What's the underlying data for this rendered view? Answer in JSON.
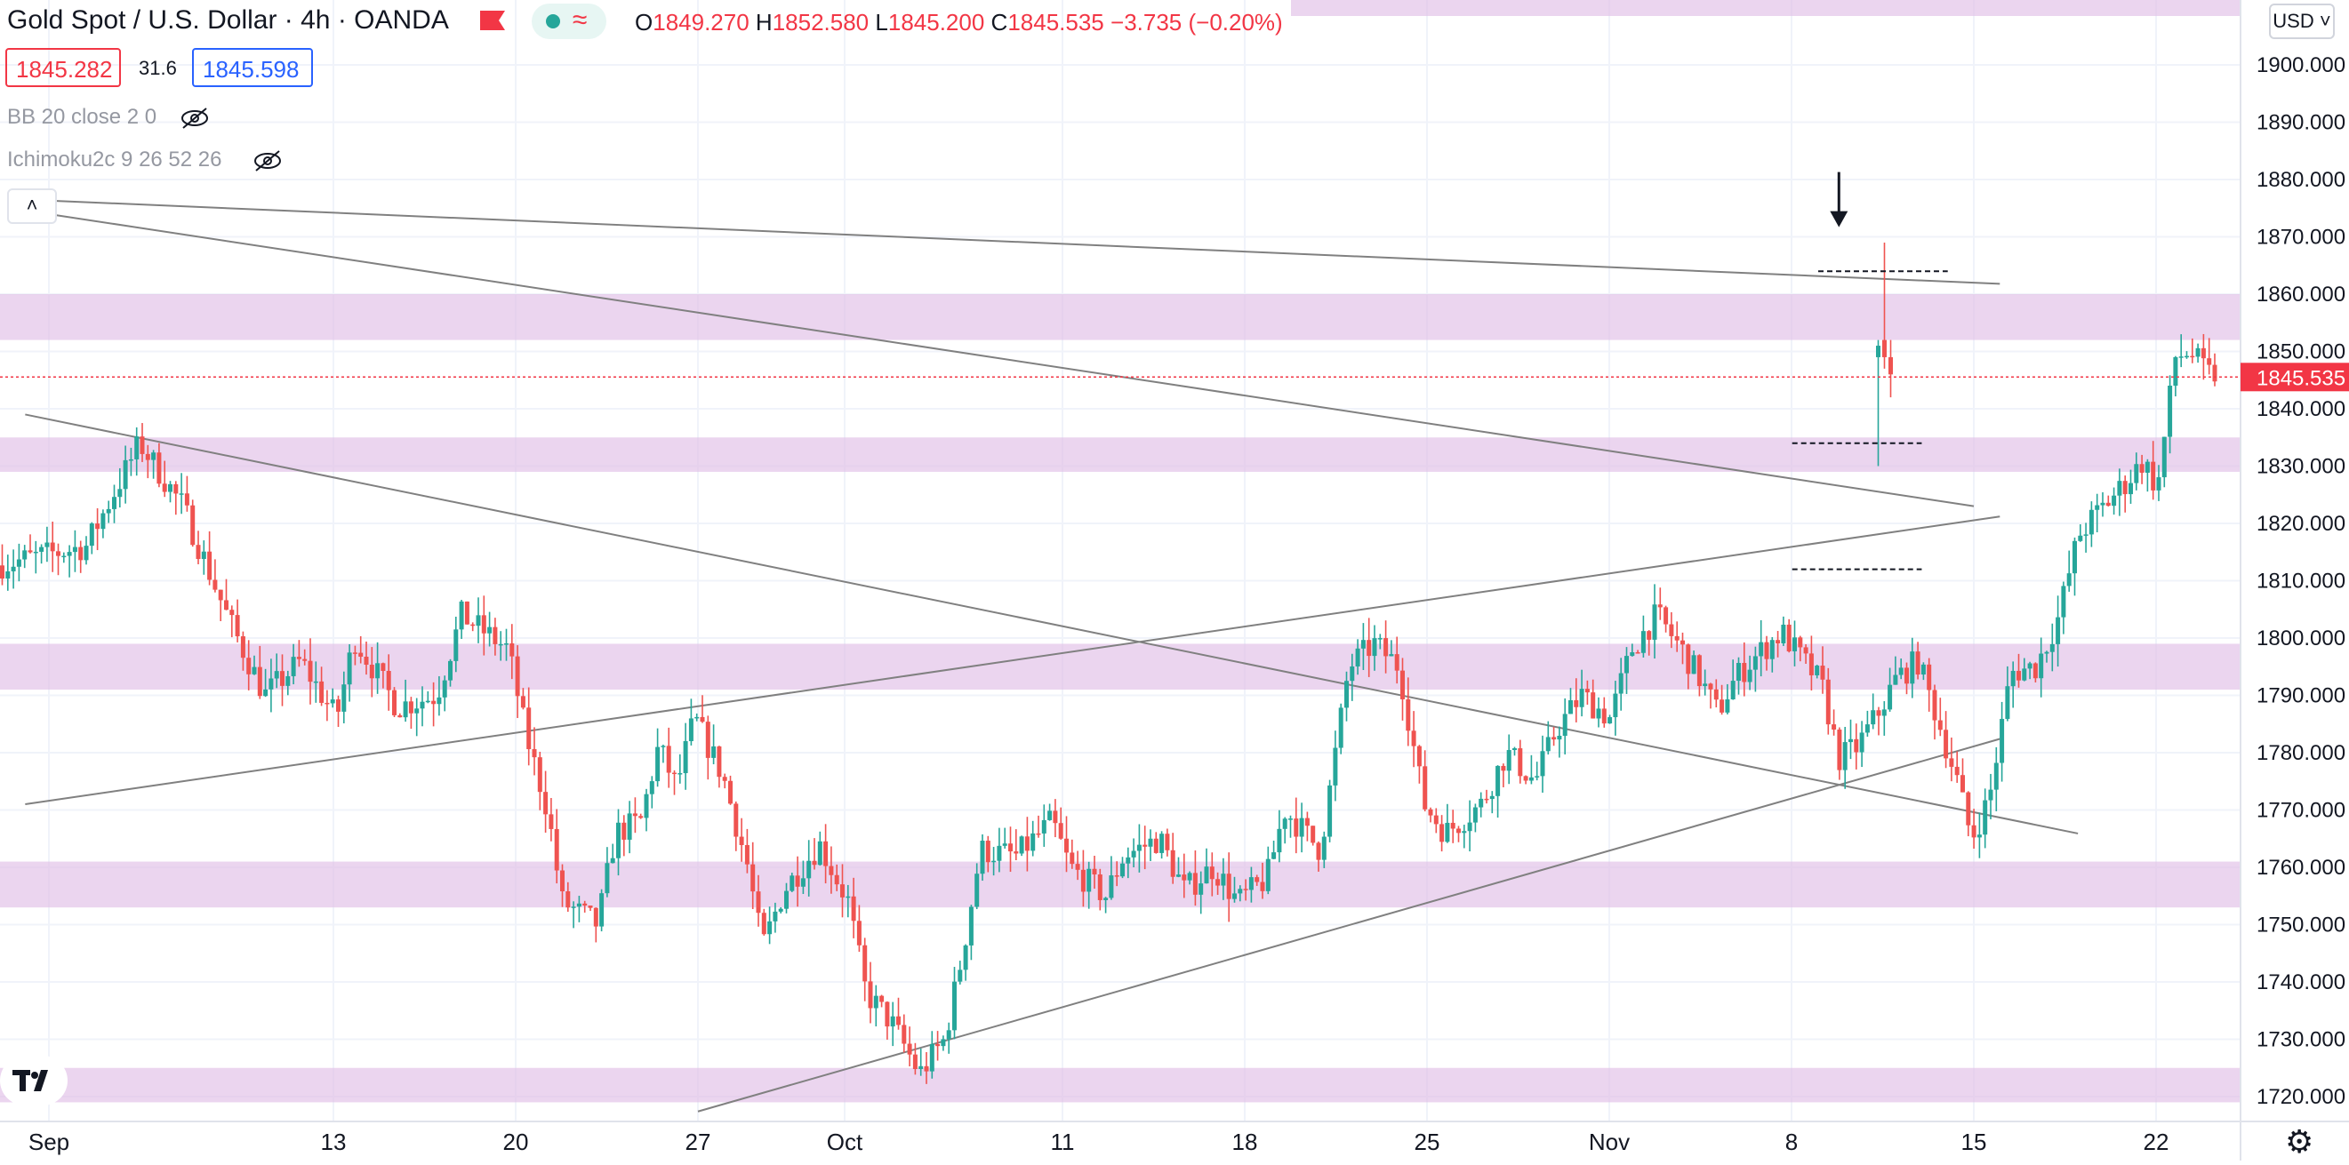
{
  "header": {
    "symbol_title": "Gold Spot / U.S. Dollar · 4h · OANDA",
    "ohlc": {
      "open_label": "O",
      "open": "1849.270",
      "high_label": "H",
      "high": "1852.580",
      "low_label": "L",
      "low": "1845.200",
      "close_label": "C",
      "close": "1845.535",
      "change": "−3.735 (−0.20%)"
    },
    "bid": "1845.282",
    "spread": "31.6",
    "ask": "1845.598",
    "indicators": [
      {
        "label": "BB 20 close 2 0"
      },
      {
        "label": "Ichimoku2c 9 26 52 26"
      }
    ],
    "currency": "USD",
    "collapse_glyph": "˄"
  },
  "colors": {
    "up": "#26a69a",
    "down": "#ef5350",
    "zone": "#e1bee7",
    "trendline": "#808080",
    "last_price": "#f23645",
    "grid": "#f0f3fa"
  },
  "icons": {
    "flag": "flag-icon",
    "visibility": "eye-slash-icon",
    "settings": "gear-icon",
    "logo": "tradingview-logo"
  },
  "chart_data": {
    "type": "candlestick",
    "title": "Gold Spot / U.S. Dollar · 4h · OANDA",
    "xlabel": "",
    "ylabel": "",
    "ylim": [
      1717,
      1906
    ],
    "grid": true,
    "y_ticks": [
      "1720.000",
      "1730.000",
      "1740.000",
      "1750.000",
      "1760.000",
      "1770.000",
      "1780.000",
      "1790.000",
      "1800.000",
      "1810.000",
      "1820.000",
      "1830.000",
      "1840.000",
      "1850.000",
      "1860.000",
      "1870.000",
      "1880.000",
      "1890.000",
      "1900.000"
    ],
    "x_ticks": [
      {
        "label": "Sep",
        "date": "2021-09-01"
      },
      {
        "label": "13",
        "date": "2021-09-13"
      },
      {
        "label": "20",
        "date": "2021-09-20"
      },
      {
        "label": "27",
        "date": "2021-09-27"
      },
      {
        "label": "Oct",
        "date": "2021-10-01"
      },
      {
        "label": "11",
        "date": "2021-10-11"
      },
      {
        "label": "18",
        "date": "2021-10-18"
      },
      {
        "label": "25",
        "date": "2021-10-25"
      },
      {
        "label": "Nov",
        "date": "2021-11-01"
      },
      {
        "label": "8",
        "date": "2021-11-08"
      },
      {
        "label": "15",
        "date": "2021-11-15"
      },
      {
        "label": "22",
        "date": "2021-11-22"
      }
    ],
    "last_price": "1845.535",
    "zones": [
      [
        1852,
        1860
      ],
      [
        1829,
        1835
      ],
      [
        1791,
        1799
      ],
      [
        1753,
        1761
      ],
      [
        1719,
        1725
      ]
    ],
    "price_path": [
      [
        1,
        1814
      ],
      [
        2.5,
        1816
      ],
      [
        4,
        1834
      ],
      [
        5.2,
        1823
      ],
      [
        6.5,
        1803
      ],
      [
        7.5,
        1790
      ],
      [
        8.5,
        1796
      ],
      [
        9.5,
        1786
      ],
      [
        10,
        1800
      ],
      [
        11.2,
        1788
      ],
      [
        12.3,
        1790
      ],
      [
        13,
        1804
      ],
      [
        14.3,
        1798
      ],
      [
        14.8,
        1783
      ],
      [
        15.4,
        1770
      ],
      [
        15.8,
        1754
      ],
      [
        16.8,
        1750
      ],
      [
        17.3,
        1766
      ],
      [
        18,
        1768
      ],
      [
        18.5,
        1781
      ],
      [
        19,
        1774
      ],
      [
        19.5,
        1786
      ],
      [
        20.3,
        1776
      ],
      [
        21,
        1760
      ],
      [
        21.4,
        1746
      ],
      [
        22,
        1756
      ],
      [
        23,
        1764
      ],
      [
        23.8,
        1754
      ],
      [
        24.3,
        1738
      ],
      [
        25,
        1733
      ],
      [
        25.8,
        1724
      ],
      [
        26.5,
        1730
      ],
      [
        27,
        1745
      ],
      [
        27.5,
        1763
      ],
      [
        28.5,
        1762
      ],
      [
        29.5,
        1768
      ],
      [
        30,
        1760
      ],
      [
        31,
        1755
      ],
      [
        31.5,
        1762
      ],
      [
        32.5,
        1765
      ],
      [
        33.2,
        1756
      ],
      [
        34,
        1760
      ],
      [
        34.7,
        1754
      ],
      [
        35.5,
        1758
      ],
      [
        36,
        1770
      ],
      [
        37,
        1763
      ],
      [
        37.8,
        1795
      ],
      [
        38.5,
        1799
      ],
      [
        39.2,
        1795
      ],
      [
        39.9,
        1771
      ],
      [
        40.5,
        1766
      ],
      [
        41.5,
        1771
      ],
      [
        42.2,
        1780
      ],
      [
        43,
        1775
      ],
      [
        43.6,
        1784
      ],
      [
        44.3,
        1790
      ],
      [
        45.1,
        1786
      ],
      [
        45.7,
        1798
      ],
      [
        46.4,
        1804
      ],
      [
        47.1,
        1798
      ],
      [
        47.6,
        1793
      ],
      [
        48.1,
        1787
      ],
      [
        48.6,
        1793
      ],
      [
        49.2,
        1797
      ],
      [
        49.9,
        1801
      ],
      [
        50.5,
        1796
      ],
      [
        51,
        1792
      ],
      [
        51.5,
        1779
      ],
      [
        52,
        1781
      ],
      [
        52.6,
        1787
      ],
      [
        53.1,
        1793
      ],
      [
        53.7,
        1796
      ],
      [
        54.3,
        1785
      ],
      [
        54.8,
        1775
      ],
      [
        55.2,
        1765
      ],
      [
        55.7,
        1772
      ],
      [
        56.3,
        1794
      ],
      [
        57,
        1795
      ],
      [
        57.6,
        1803
      ],
      [
        58.2,
        1818
      ],
      [
        58.9,
        1823
      ],
      [
        59.5,
        1827
      ],
      [
        60,
        1831
      ],
      [
        60.4,
        1826
      ],
      [
        60.9,
        1849
      ],
      [
        61.3,
        1850
      ],
      [
        61.8,
        1846
      ]
    ],
    "trendlines": [
      {
        "from": [
          "2021-08-31",
          1876.5
        ],
        "to": [
          "2021-11-16",
          1861.8
        ]
      },
      {
        "from": [
          "2021-08-31",
          1874.6
        ],
        "to": [
          "2021-11-15",
          1823.0
        ]
      },
      {
        "from": [
          "2021-08-31",
          1839.0
        ],
        "to": [
          "2021-11-19",
          1765.9
        ]
      },
      {
        "from": [
          "2021-08-31",
          1771.0
        ],
        "to": [
          "2021-11-16",
          1821.2
        ]
      },
      {
        "from": [
          "2021-09-27",
          1717.4
        ],
        "to": [
          "2021-11-16",
          1782.4
        ]
      }
    ],
    "level_markers": [
      {
        "from": "2021-11-08",
        "to": "2021-11-14",
        "price": 1864
      },
      {
        "from": "2021-11-07",
        "to": "2021-11-13",
        "price": 1834
      },
      {
        "from": "2021-11-07",
        "to": "2021-11-13",
        "price": 1812
      }
    ],
    "annotation_arrow": {
      "date": "2021-11-09",
      "price": 1872
    }
  }
}
